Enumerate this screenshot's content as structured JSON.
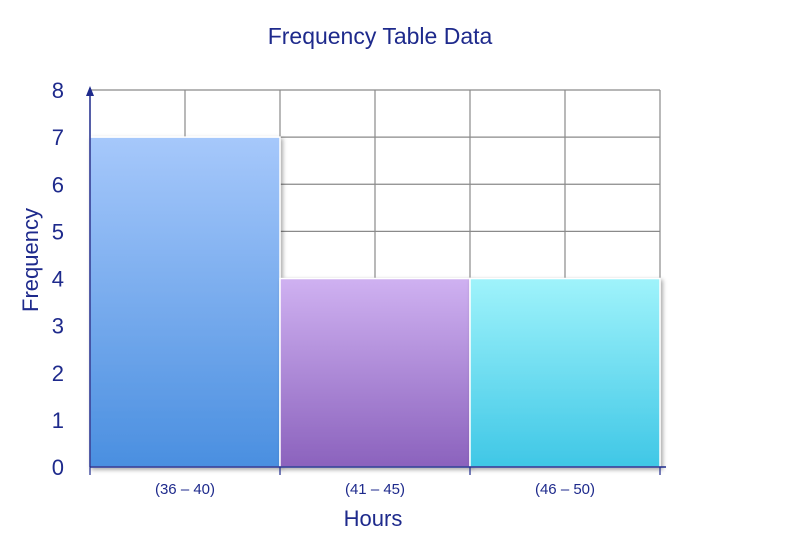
{
  "chart_data": {
    "type": "bar",
    "title": "Frequency Table Data",
    "xlabel": "Hours",
    "ylabel": "Frequency",
    "categories": [
      "(36 – 40)",
      "(41 – 45)",
      "(46 – 50)"
    ],
    "values": [
      7,
      4,
      4
    ],
    "ylim": [
      0,
      8
    ],
    "yticks": [
      0,
      1,
      2,
      3,
      4,
      5,
      6,
      7,
      8
    ],
    "grid": true,
    "bar_colors": [
      {
        "top": "#a6c8fb",
        "bottom": "#4a8fe0"
      },
      {
        "top": "#cfb1f1",
        "bottom": "#8b62bd"
      },
      {
        "top": "#9ff3fb",
        "bottom": "#3fc7e6"
      }
    ],
    "text_color": "#1e2a8c",
    "grid_color": "#8a8a8a"
  }
}
